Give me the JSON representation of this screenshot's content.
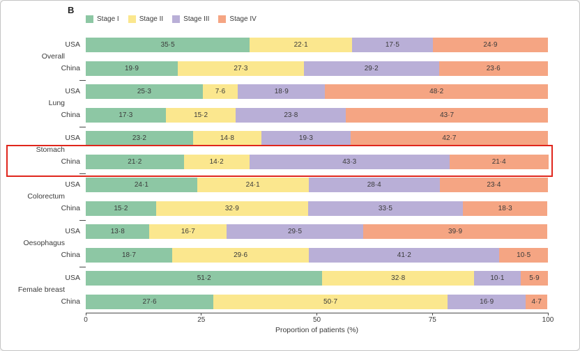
{
  "panel_label": "B",
  "highlight": {
    "target": "Stomach China row",
    "color": "#e0261c"
  },
  "chart_data": {
    "type": "bar",
    "orientation": "horizontal",
    "stacked": true,
    "title": "",
    "xlabel": "Proportion of patients (%)",
    "ylabel": "",
    "xlim": [
      0,
      100
    ],
    "xticks": [
      0,
      25,
      50,
      75,
      100
    ],
    "grid": false,
    "legend_position": "top-left",
    "decimal_separator": "·",
    "series": [
      {
        "name": "Stage I",
        "color": "#8dc7a4"
      },
      {
        "name": "Stage II",
        "color": "#fbe78e"
      },
      {
        "name": "Stage III",
        "color": "#b9afd7"
      },
      {
        "name": "Stage IV",
        "color": "#f5a583"
      }
    ],
    "groups": [
      {
        "label": "Overall",
        "rows": [
          {
            "label": "USA",
            "values": [
              35.5,
              22.1,
              17.5,
              24.9
            ]
          },
          {
            "label": "China",
            "values": [
              19.9,
              27.3,
              29.2,
              23.6
            ]
          }
        ]
      },
      {
        "label": "Lung",
        "rows": [
          {
            "label": "USA",
            "values": [
              25.3,
              7.6,
              18.9,
              48.2
            ]
          },
          {
            "label": "China",
            "values": [
              17.3,
              15.2,
              23.8,
              43.7
            ]
          }
        ]
      },
      {
        "label": "Stomach",
        "rows": [
          {
            "label": "USA",
            "values": [
              23.2,
              14.8,
              19.3,
              42.7
            ]
          },
          {
            "label": "China",
            "values": [
              21.2,
              14.2,
              43.3,
              21.4
            ]
          }
        ]
      },
      {
        "label": "Colorectum",
        "rows": [
          {
            "label": "USA",
            "values": [
              24.1,
              24.1,
              28.4,
              23.4
            ]
          },
          {
            "label": "China",
            "values": [
              15.2,
              32.9,
              33.5,
              18.3
            ]
          }
        ]
      },
      {
        "label": "Oesophagus",
        "rows": [
          {
            "label": "USA",
            "values": [
              13.8,
              16.7,
              29.5,
              39.9
            ]
          },
          {
            "label": "China",
            "values": [
              18.7,
              29.6,
              41.2,
              10.5
            ]
          }
        ]
      },
      {
        "label": "Female breast",
        "rows": [
          {
            "label": "USA",
            "values": [
              51.2,
              32.8,
              10.1,
              5.9
            ]
          },
          {
            "label": "China",
            "values": [
              27.6,
              50.7,
              16.9,
              4.7
            ]
          }
        ]
      }
    ]
  }
}
